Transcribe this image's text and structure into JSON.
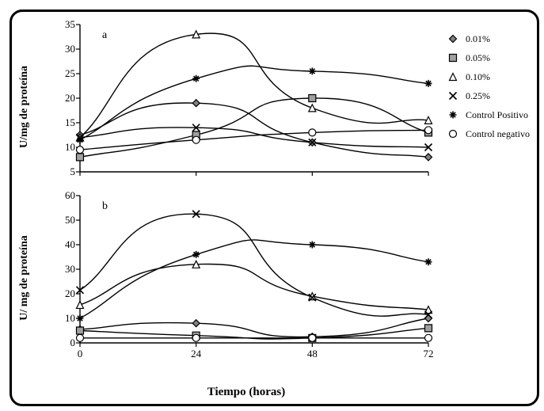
{
  "x_axis": {
    "label": "Tiempo (horas)",
    "ticks": [
      0,
      24,
      48,
      72
    ],
    "min": 0,
    "max": 72,
    "label_fontsize": 15
  },
  "panel_a": {
    "tag": "a",
    "y_label": "U/mg de proteína",
    "ylim": [
      5,
      35
    ],
    "yticks": [
      5,
      10,
      15,
      20,
      25,
      30,
      35
    ]
  },
  "panel_b": {
    "tag": "b",
    "y_label": "U/ mg de proteína",
    "ylim": [
      0,
      60
    ],
    "yticks": [
      0,
      10,
      20,
      30,
      40,
      50,
      60
    ]
  },
  "series": [
    {
      "key": "s001",
      "label": "0.01%",
      "marker": "diamond",
      "fill": "#808080",
      "a": [
        12.5,
        19.0,
        11.0,
        8.0
      ],
      "b": [
        5.5,
        8.0,
        2.5,
        10.0
      ]
    },
    {
      "key": "s005",
      "label": "0.05%",
      "marker": "square",
      "fill": "#a0a0a0",
      "a": [
        8.0,
        12.5,
        20.0,
        13.0
      ],
      "b": [
        5.0,
        3.0,
        2.0,
        6.0
      ]
    },
    {
      "key": "s010",
      "label": "0.10%",
      "marker": "triangle",
      "fill": "#ffffff",
      "a": [
        12.0,
        33.0,
        18.0,
        15.5
      ],
      "b": [
        15.5,
        32.0,
        19.0,
        13.5
      ]
    },
    {
      "key": "s025",
      "label": "0.25%",
      "marker": "x",
      "fill": "#000000",
      "a": [
        12.0,
        14.0,
        11.0,
        10.0
      ],
      "b": [
        21.5,
        52.5,
        18.5,
        11.5
      ]
    },
    {
      "key": "cpos",
      "label": "Control Positivo",
      "marker": "star",
      "fill": "#000000",
      "a": [
        11.5,
        24.0,
        25.5,
        23.0
      ],
      "b": [
        10.0,
        36.0,
        40.0,
        33.0
      ]
    },
    {
      "key": "cneg",
      "label": "Control negativo",
      "marker": "circle",
      "fill": "#ffffff",
      "a": [
        9.5,
        11.5,
        13.0,
        13.5
      ],
      "b": [
        2.0,
        2.0,
        2.0,
        2.0
      ]
    }
  ],
  "colors": {
    "line": "#000000",
    "marker_stroke": "#000000",
    "axis": "#000000",
    "tick": "#000000",
    "bg": "#ffffff"
  },
  "style": {
    "line_width": 1.4,
    "marker_size": 9,
    "curve": true
  }
}
